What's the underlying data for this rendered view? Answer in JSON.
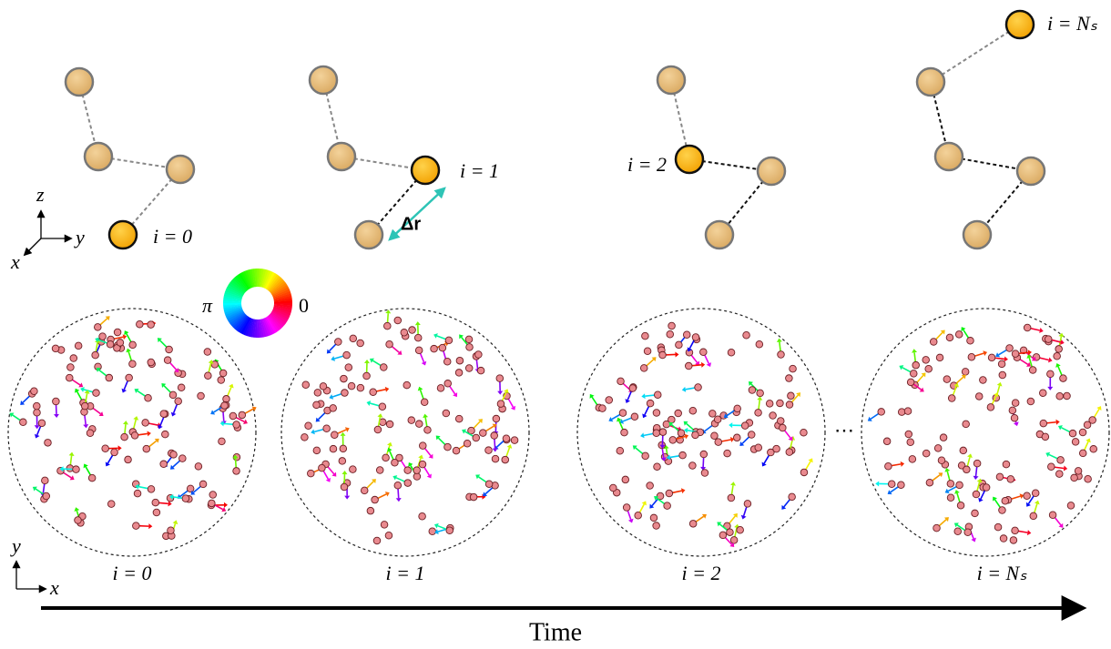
{
  "top_panels": [
    {
      "label": "i = 0"
    },
    {
      "label": "i = 1"
    },
    {
      "label": "i = 2"
    },
    {
      "label": "i = Nₛ"
    }
  ],
  "delta_r": "Δr",
  "axes_3d": {
    "z": "z",
    "y": "y",
    "x": "x"
  },
  "color_wheel": {
    "left": "π",
    "right": "0"
  },
  "bottom_panels": [
    {
      "label": "i = 0"
    },
    {
      "label": "i = 1"
    },
    {
      "label": "i = 2"
    },
    {
      "label": "i = Nₛ"
    }
  ],
  "ellipsis": "⋯",
  "axes_2d": {
    "y": "y",
    "x": "x"
  },
  "time_label": "Time"
}
